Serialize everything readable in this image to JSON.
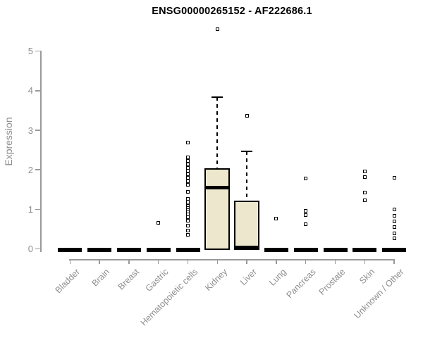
{
  "title": "ENSG00000265152 - AF222686.1",
  "colors": {
    "box_fill": "#EDE8CD",
    "box_border": "#000000",
    "axis": "#9a9a9a",
    "tick_label": "#8e8e8e",
    "title": "#000000"
  },
  "chart_data": {
    "type": "boxplot",
    "title": "ENSG00000265152 - AF222686.1",
    "xlabel": "",
    "ylabel": "Expression",
    "ylim": [
      0,
      5
    ],
    "yticks": [
      0,
      1,
      2,
      3,
      4,
      5
    ],
    "grid": false,
    "legend": false,
    "categories": [
      "Bladder",
      "Brain",
      "Breast",
      "Gastric",
      "Hematopoietic cells",
      "Kidney",
      "Liver",
      "Lung",
      "Pancreas",
      "Prostate",
      "Skin",
      "Unknown / Other"
    ],
    "boxes": [
      {
        "category": "Bladder",
        "q1": 0,
        "median": 0,
        "q3": 0,
        "whisker_low": 0,
        "whisker_high": 0,
        "outliers": []
      },
      {
        "category": "Brain",
        "q1": 0,
        "median": 0,
        "q3": 0,
        "whisker_low": 0,
        "whisker_high": 0,
        "outliers": []
      },
      {
        "category": "Breast",
        "q1": 0,
        "median": 0,
        "q3": 0,
        "whisker_low": 0,
        "whisker_high": 0,
        "outliers": []
      },
      {
        "category": "Gastric",
        "q1": 0,
        "median": 0,
        "q3": 0,
        "whisker_low": 0,
        "whisker_high": 0,
        "outliers": [
          0.65
        ]
      },
      {
        "category": "Hematopoietic cells",
        "q1": 0,
        "median": 0,
        "q3": 0,
        "whisker_low": 0,
        "whisker_high": 0,
        "outliers": [
          2.68,
          2.32,
          2.23,
          2.14,
          2.05,
          1.98,
          1.88,
          1.79,
          1.71,
          1.62,
          1.45,
          1.27,
          1.2,
          1.13,
          1.08,
          1.03,
          0.98,
          0.93,
          0.87,
          0.8,
          0.71,
          0.59,
          0.46,
          0.36
        ]
      },
      {
        "category": "Kidney",
        "q1": 0,
        "median": 1.55,
        "q3": 2.03,
        "whisker_low": 0,
        "whisker_high": 3.84,
        "outliers": [
          5.55
        ]
      },
      {
        "category": "Liver",
        "q1": 0,
        "median": 0.03,
        "q3": 1.22,
        "whisker_low": 0,
        "whisker_high": 2.47,
        "outliers": [
          3.36
        ]
      },
      {
        "category": "Lung",
        "q1": 0,
        "median": 0,
        "q3": 0,
        "whisker_low": 0,
        "whisker_high": 0,
        "outliers": [
          0.76
        ]
      },
      {
        "category": "Pancreas",
        "q1": 0,
        "median": 0,
        "q3": 0,
        "whisker_low": 0,
        "whisker_high": 0,
        "outliers": [
          1.78,
          0.97,
          0.85,
          0.62
        ]
      },
      {
        "category": "Prostate",
        "q1": 0,
        "median": 0,
        "q3": 0,
        "whisker_low": 0,
        "whisker_high": 0,
        "outliers": []
      },
      {
        "category": "Skin",
        "q1": 0,
        "median": 0,
        "q3": 0,
        "whisker_low": 0,
        "whisker_high": 0,
        "outliers": [
          1.95,
          1.82,
          1.43,
          1.23
        ]
      },
      {
        "category": "Unknown / Other",
        "q1": 0,
        "median": 0,
        "q3": 0,
        "whisker_low": 0,
        "whisker_high": 0,
        "outliers": [
          1.8,
          1.0,
          0.84,
          0.7,
          0.55,
          0.39,
          0.27
        ]
      }
    ]
  }
}
